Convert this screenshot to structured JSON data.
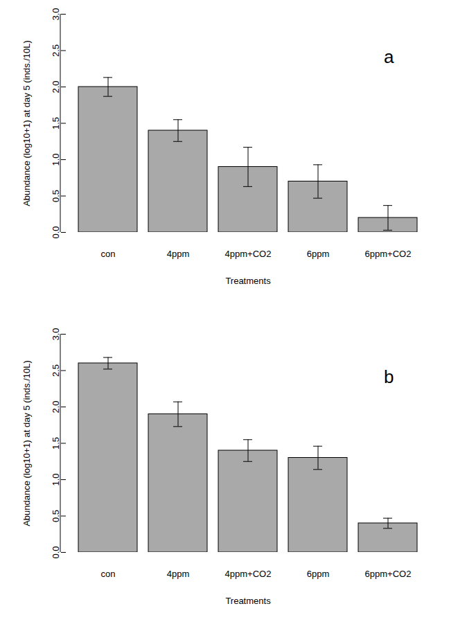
{
  "chart_data": [
    {
      "type": "bar",
      "annotation": "a",
      "x_label": "Treatments",
      "y_label": "Abundance (log10+1) at day 5 (inds./10L)",
      "categories": [
        "con",
        "4ppm",
        "4ppm+CO2",
        "6ppm",
        "6ppm+CO2"
      ],
      "values": [
        2.0,
        1.4,
        0.9,
        0.7,
        0.2
      ],
      "error": [
        0.13,
        0.15,
        0.27,
        0.23,
        0.17
      ],
      "color": "#a9a9a9",
      "ylim": [
        0,
        3
      ],
      "yticks": [
        {
          "value": 0,
          "label": "0.0"
        },
        {
          "value": 0.5,
          "label": "0.5"
        },
        {
          "value": 1,
          "label": "1.0"
        },
        {
          "value": 1.5,
          "label": "1.5"
        },
        {
          "value": 2,
          "label": "2.0"
        },
        {
          "value": 2.5,
          "label": "2.5"
        },
        {
          "value": 3,
          "label": "3.0"
        }
      ]
    },
    {
      "type": "bar",
      "annotation": "b",
      "x_label": "Treatments",
      "y_label": "Abundance (log10+1) at day 5 (inds./10L)",
      "categories": [
        "con",
        "4ppm",
        "4ppm+CO2",
        "6ppm",
        "6ppm+CO2"
      ],
      "values": [
        2.6,
        1.9,
        1.4,
        1.3,
        0.4
      ],
      "error": [
        0.08,
        0.17,
        0.15,
        0.16,
        0.07
      ],
      "color": "#a9a9a9",
      "ylim": [
        0,
        3
      ],
      "yticks": [
        {
          "value": 0,
          "label": "0.0"
        },
        {
          "value": 0.5,
          "label": "0.5"
        },
        {
          "value": 1,
          "label": "1.0"
        },
        {
          "value": 1.5,
          "label": "1.5"
        },
        {
          "value": 2,
          "label": "2.0"
        },
        {
          "value": 2.5,
          "label": "2.5"
        },
        {
          "value": 3,
          "label": "3.0"
        }
      ]
    }
  ]
}
